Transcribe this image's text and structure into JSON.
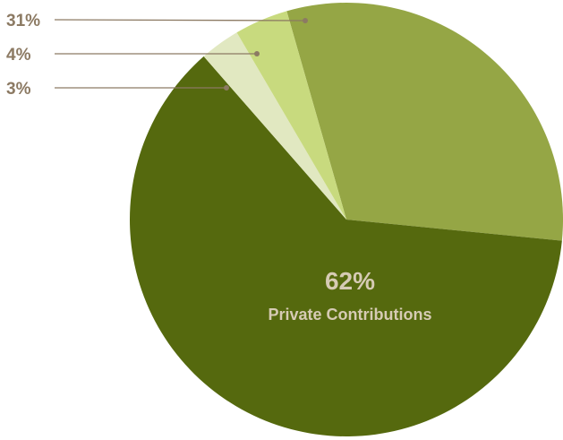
{
  "chart_data": {
    "type": "pie",
    "slices": [
      {
        "label": "31%",
        "value": 31,
        "color": "#95a645"
      },
      {
        "label": "62%",
        "name": "Private Contributions",
        "value": 62,
        "color": "#55690e"
      },
      {
        "label": "3%",
        "value": 3,
        "color": "#e1e8c1"
      },
      {
        "label": "4%",
        "value": 4,
        "color": "#c8da7e"
      }
    ],
    "callout_color": "#8c7a63",
    "center_text_color": "#d6cbb4"
  }
}
